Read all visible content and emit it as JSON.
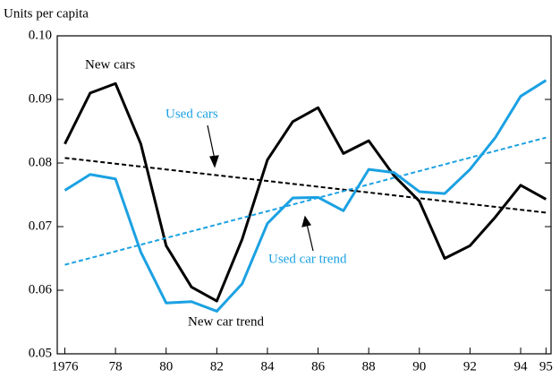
{
  "chart_data": {
    "type": "line",
    "ylabel": "Units per capita",
    "xlim": [
      1975.7,
      1995.2
    ],
    "xticks": [
      {
        "value": 1976,
        "label": "1976"
      },
      {
        "value": 1978,
        "label": "78"
      },
      {
        "value": 1980,
        "label": "80"
      },
      {
        "value": 1982,
        "label": "82"
      },
      {
        "value": 1984,
        "label": "84"
      },
      {
        "value": 1986,
        "label": "86"
      },
      {
        "value": 1988,
        "label": "88"
      },
      {
        "value": 1990,
        "label": "90"
      },
      {
        "value": 1992,
        "label": "92"
      },
      {
        "value": 1994,
        "label": "94"
      },
      {
        "value": 1995,
        "label": "95"
      }
    ],
    "ylim": [
      0.05,
      0.1
    ],
    "yticks": [
      0.05,
      0.06,
      0.07,
      0.08,
      0.09,
      {
        "value": 0.1,
        "label": "0.10"
      }
    ],
    "series": [
      {
        "name": "New cars",
        "color": "#000000",
        "dashed": false,
        "x": [
          1976,
          1977,
          1978,
          1979,
          1980,
          1981,
          1982,
          1983,
          1984,
          1985,
          1986,
          1987,
          1988,
          1989,
          1990,
          1991,
          1992,
          1993,
          1994,
          1995
        ],
        "values": [
          0.083,
          0.091,
          0.0925,
          0.083,
          0.067,
          0.0605,
          0.0583,
          0.068,
          0.0805,
          0.0865,
          0.0887,
          0.0815,
          0.0835,
          0.078,
          0.074,
          0.065,
          0.067,
          0.0715,
          0.0765,
          0.0743
        ]
      },
      {
        "name": "Used cars",
        "color": "#1ba1e2",
        "dashed": false,
        "x": [
          1976,
          1977,
          1978,
          1979,
          1980,
          1981,
          1982,
          1983,
          1984,
          1985,
          1986,
          1987,
          1988,
          1989,
          1990,
          1991,
          1992,
          1993,
          1994,
          1995
        ],
        "values": [
          0.0757,
          0.0782,
          0.0775,
          0.066,
          0.058,
          0.0582,
          0.0567,
          0.061,
          0.0705,
          0.0745,
          0.0746,
          0.0725,
          0.079,
          0.0785,
          0.0755,
          0.0752,
          0.079,
          0.084,
          0.0905,
          0.093
        ]
      },
      {
        "name": "New car trend",
        "color": "#000000",
        "dashed": true,
        "x": [
          1976,
          1995
        ],
        "values": [
          0.0808,
          0.0722
        ]
      },
      {
        "name": "Used car trend",
        "color": "#1ba1e2",
        "dashed": true,
        "x": [
          1976,
          1995
        ],
        "values": [
          0.064,
          0.084
        ]
      }
    ]
  }
}
